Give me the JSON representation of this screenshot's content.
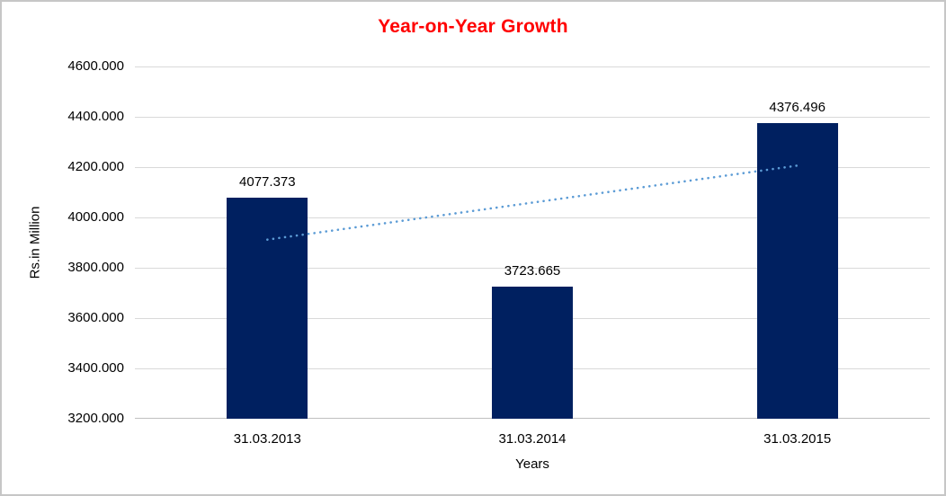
{
  "chart_data": {
    "type": "bar",
    "title": "Year-on-Year Growth",
    "xlabel": "Years",
    "ylabel": "Rs.in Million",
    "categories": [
      "31.03.2013",
      "31.03.2014",
      "31.03.2015"
    ],
    "values": [
      4077.373,
      3723.665,
      4376.496
    ],
    "value_labels": [
      "4077.373",
      "3723.665",
      "4376.496"
    ],
    "ylim": [
      3200,
      4600
    ],
    "ytick_step": 200,
    "ytick_labels": [
      "3200.000",
      "3400.000",
      "3600.000",
      "3800.000",
      "4000.000",
      "4200.000",
      "4400.000",
      "4600.000"
    ],
    "grid": true,
    "legend": "none",
    "trendline": {
      "style": "dotted",
      "start_value": 3910,
      "end_value": 4205
    },
    "colors": {
      "bar": "#002060",
      "title": "#FF0000",
      "trendline": "#5B9BD5",
      "gridline": "#D9D9D9",
      "axis": "#BFBFBF",
      "border": "#C6C6C6",
      "text": "#000000"
    }
  }
}
